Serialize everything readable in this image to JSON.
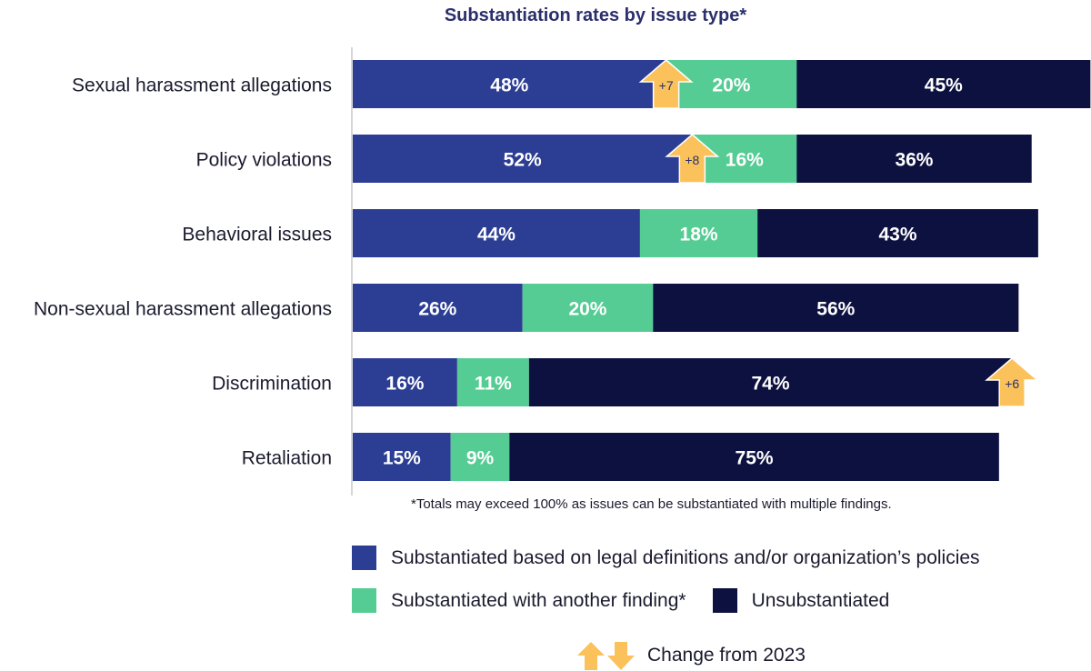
{
  "chart_data": {
    "type": "bar",
    "orientation": "horizontal",
    "stacked": true,
    "title": "Substantiation rates by issue type*",
    "footnote": "*Totals may exceed 100% as issues can be substantiated with multiple findings.",
    "categories": [
      "Sexual harassment allegations",
      "Policy violations",
      "Behavioral issues",
      "Non-sexual harassment allegations",
      "Discrimination",
      "Retaliation"
    ],
    "series": [
      {
        "name": "Substantiated based on legal definitions and/or organization’s policies",
        "color": "#2c3e94",
        "values": [
          48,
          52,
          44,
          26,
          16,
          15
        ]
      },
      {
        "name": "Substantiated with another finding*",
        "color": "#55cc94",
        "values": [
          20,
          16,
          18,
          20,
          11,
          9
        ]
      },
      {
        "name": "Unsubstantiated",
        "color": "#0d1140",
        "values": [
          45,
          36,
          43,
          56,
          74,
          75
        ]
      }
    ],
    "changes": [
      {
        "category": "Sexual harassment allegations",
        "label": "+7",
        "direction": "up",
        "series": "Substantiated based on legal definitions and/or organization’s policies"
      },
      {
        "category": "Policy violations",
        "label": "+8",
        "direction": "up",
        "series": "Substantiated based on legal definitions and/or organization’s policies"
      },
      {
        "category": "Discrimination",
        "label": "+6",
        "direction": "up",
        "series": "Unsubstantiated"
      }
    ],
    "change_legend": "Change from 2023",
    "arrow_color": "#fbc25c",
    "axis_label_color": "#1a1a2e"
  }
}
